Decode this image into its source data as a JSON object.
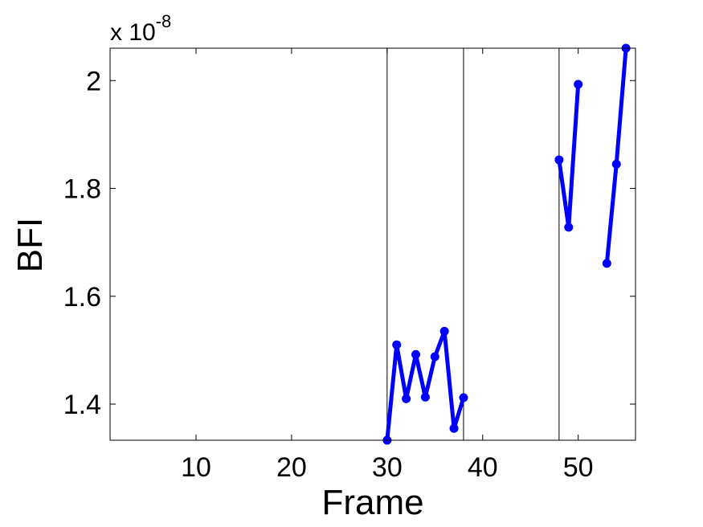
{
  "chart_data": {
    "type": "line",
    "xlabel": "Frame",
    "ylabel": "BFI",
    "y_multiplier": {
      "base": "x 10",
      "exponent": "-8"
    },
    "xlim": [
      1,
      56
    ],
    "ylim": [
      1.333,
      2.06
    ],
    "xticks": [
      10,
      20,
      30,
      40,
      50
    ],
    "yticks": [
      1.4,
      1.6,
      1.8,
      2.0
    ],
    "ytick_labels": [
      "1.4",
      "1.6",
      "1.8",
      "2"
    ],
    "vlines": [
      30,
      38,
      48
    ],
    "grid": false,
    "line_color": "#0000ff",
    "segments": [
      {
        "x": [
          30,
          31,
          32,
          33,
          34,
          35,
          36,
          37,
          38
        ],
        "y": [
          1.333,
          1.51,
          1.41,
          1.492,
          1.413,
          1.488,
          1.535,
          1.355,
          1.412
        ]
      },
      {
        "x": [
          48,
          49,
          50
        ],
        "y": [
          1.853,
          1.728,
          1.993
        ]
      },
      {
        "x": [
          53,
          54,
          55
        ],
        "y": [
          1.661,
          1.845,
          2.06
        ]
      }
    ]
  }
}
